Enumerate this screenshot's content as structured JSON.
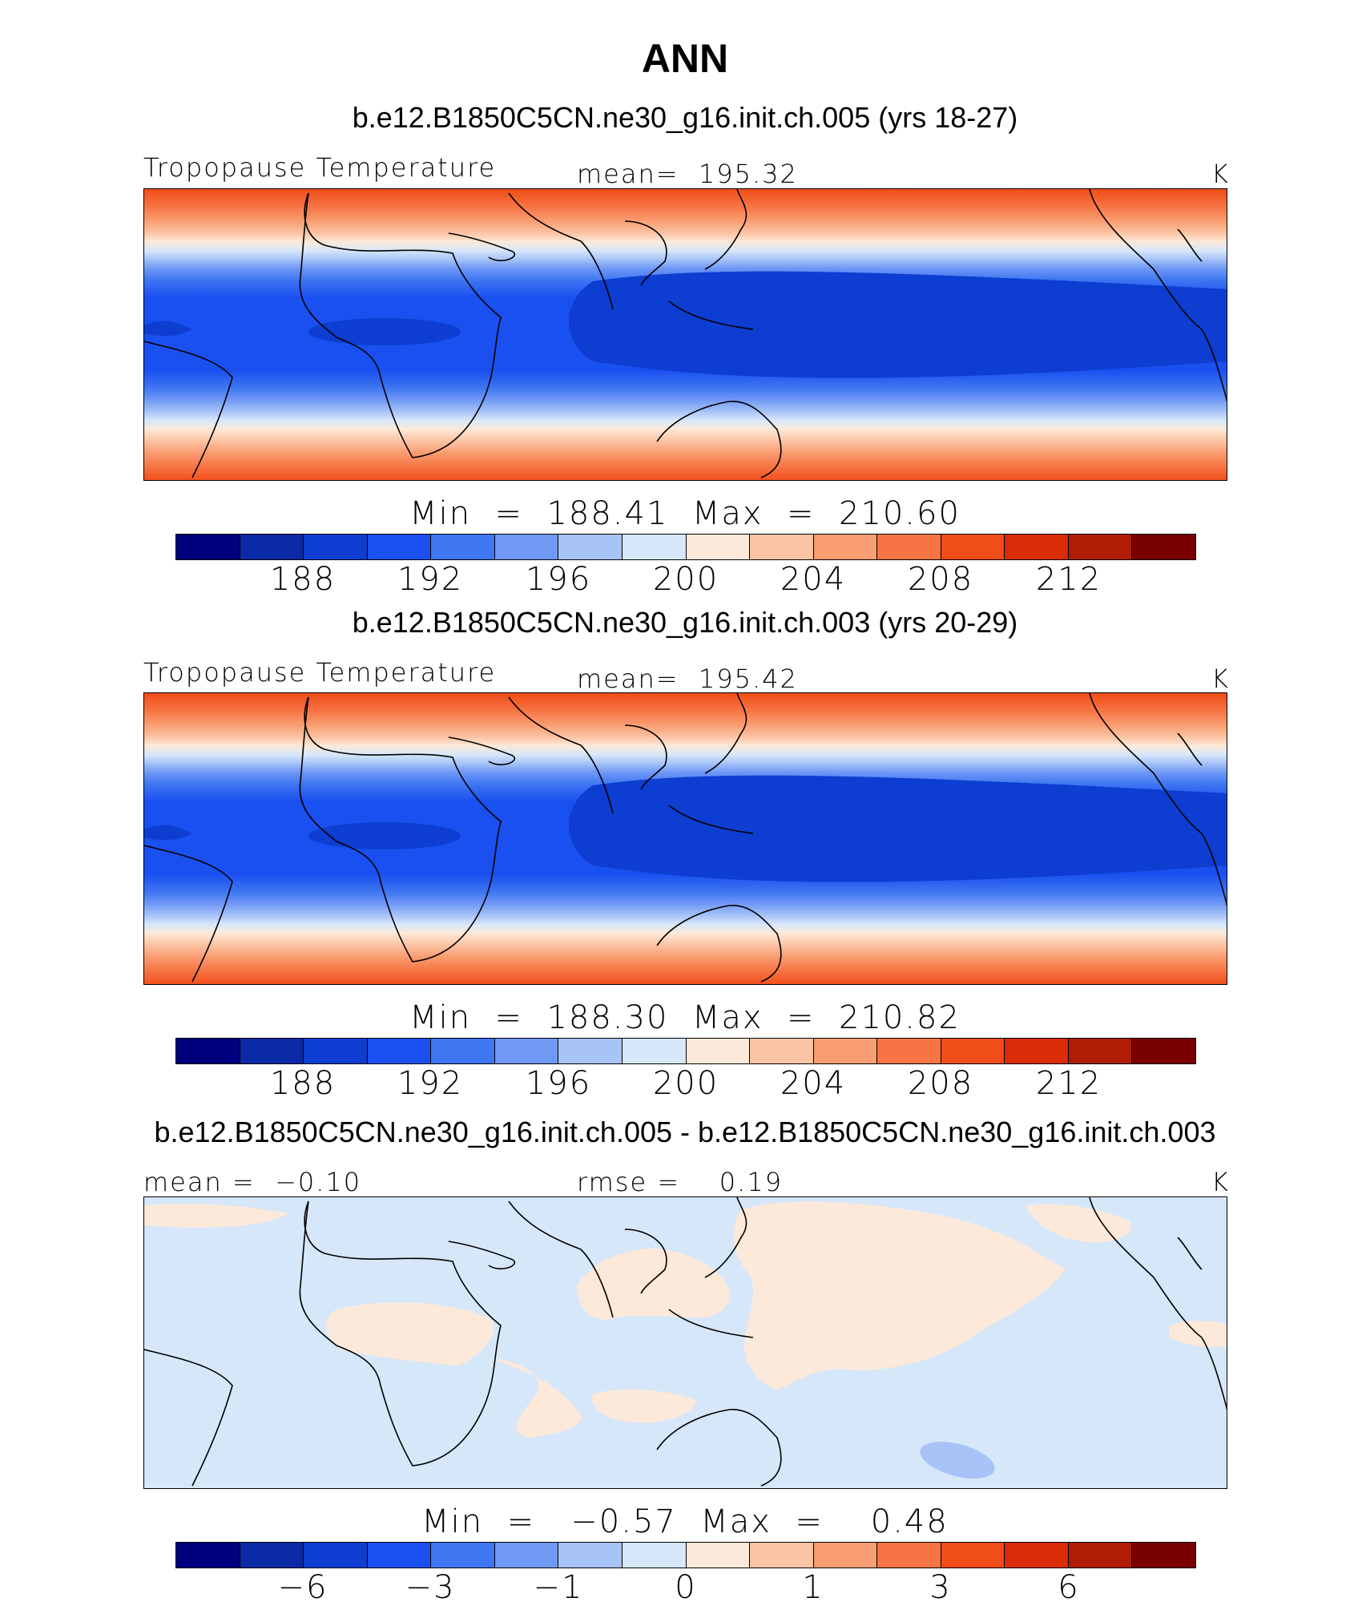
{
  "figure": {
    "title": "ANN"
  },
  "colors": {
    "palette": [
      "#00007f",
      "#0a2aa6",
      "#0d3ed1",
      "#1a50f0",
      "#3f76f2",
      "#7099f5",
      "#a7c3f7",
      "#d6e7fa",
      "#fde9d9",
      "#fcc4a4",
      "#f99e72",
      "#f77444",
      "#f04d18",
      "#d92c07",
      "#b01c04",
      "#7a0000"
    ]
  },
  "panels": [
    {
      "title": "b.e12.B1850C5CN.ne30_g16.init.ch.005 (yrs 18-27)",
      "left_label": "Tropopause Temperature",
      "center_label": "mean=  195.32",
      "units": "K",
      "min_label": "Min",
      "min_value": "188.41",
      "max_label": "Max",
      "max_value": "210.60",
      "cbar_ticks": [
        "188",
        "192",
        "196",
        "200",
        "204",
        "208",
        "212"
      ]
    },
    {
      "title": "b.e12.B1850C5CN.ne30_g16.init.ch.003 (yrs 20-29)",
      "left_label": "Tropopause Temperature",
      "center_label": "mean=  195.42",
      "units": "K",
      "min_label": "Min",
      "min_value": "188.30",
      "max_label": "Max",
      "max_value": "210.82",
      "cbar_ticks": [
        "188",
        "192",
        "196",
        "200",
        "204",
        "208",
        "212"
      ]
    },
    {
      "title": "b.e12.B1850C5CN.ne30_g16.init.ch.005 - b.e12.B1850C5CN.ne30_g16.init.ch.003",
      "left_label": "mean =  −0.10",
      "center_label": "rmse =    0.19",
      "units": "K",
      "min_label": "Min",
      "min_value": "−0.57",
      "max_label": "Max",
      "max_value": "0.48",
      "cbar_ticks": [
        "−6",
        "−3",
        "−1",
        "0",
        "1",
        "3",
        "6"
      ]
    }
  ]
}
